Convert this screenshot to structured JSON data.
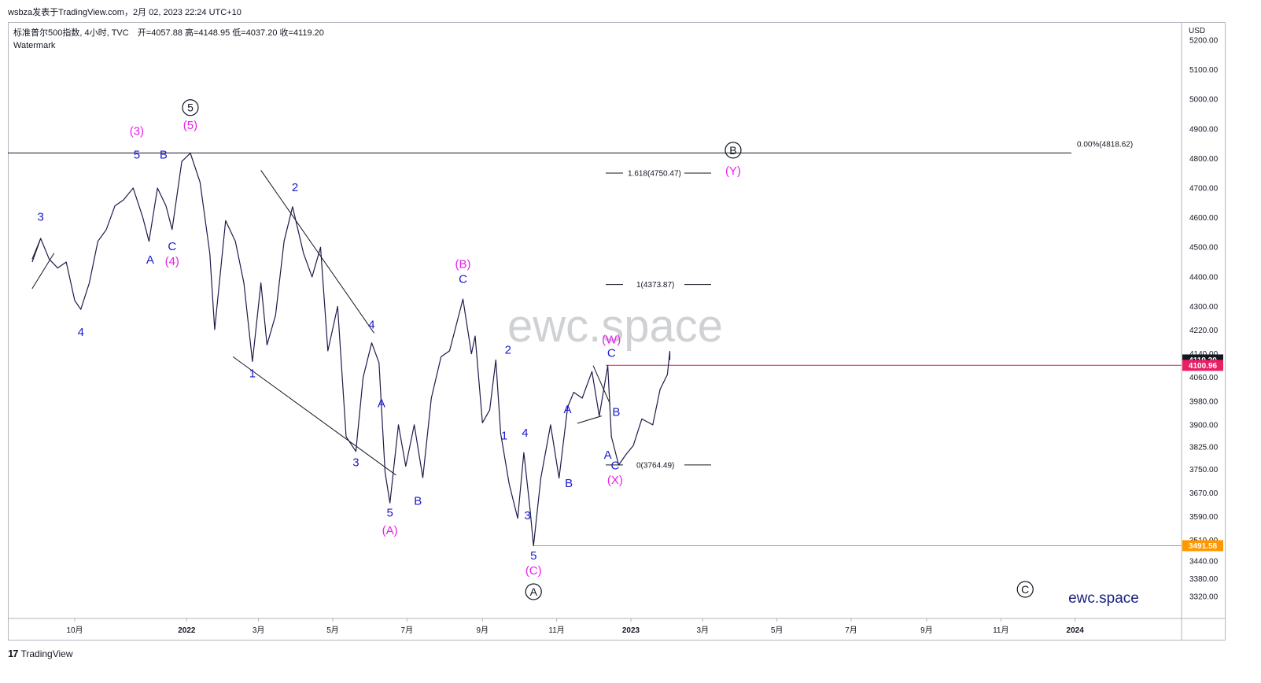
{
  "header": {
    "text": "wsbza发表于TradingView.com，2月 02, 2023 22:24 UTC+10"
  },
  "legend": {
    "symbol": "标准普尔500指数, 4小时, TVC",
    "open": "开=4057.88",
    "high": "高=4148.95",
    "low": "低=4037.20",
    "close": "收=4119.20",
    "watermark_label": "Watermark"
  },
  "currency": "USD",
  "watermark_text": "ewc.space",
  "brand_text": "ewc.space",
  "footer": {
    "logo": "17",
    "brand": "TradingView"
  },
  "colors": {
    "price_line": "#1e1b4b",
    "wave_blue": "#1a1acc",
    "wave_magenta": "#e91ee9",
    "black": "#131722",
    "current_price": "#e91e63",
    "low_line": "#ff9800"
  },
  "chart_data": {
    "type": "line",
    "instrument": "S&P 500 index, 4h",
    "x_ticks": [
      "10月",
      "2022",
      "3月",
      "5月",
      "7月",
      "9月",
      "11月",
      "2023",
      "3月",
      "5月",
      "7月",
      "9月",
      "11月",
      "2024"
    ],
    "y_ticks": [
      5200.0,
      5100.0,
      5000.0,
      4900.0,
      4800.0,
      4700.0,
      4600.0,
      4500.0,
      4400.0,
      4300.0,
      4220.0,
      4140.0,
      4060.0,
      3980.0,
      3900.0,
      3825.0,
      3750.0,
      3670.0,
      3590.0,
      3510.0,
      3440.0,
      3380.0,
      3320.0
    ],
    "y_tick_labels": [
      "5200.00",
      "5100.00",
      "5000.00",
      "4900.00",
      "4800.00",
      "4700.00",
      "4600.00",
      "4500.00",
      "4400.00",
      "4300.00",
      "4220.00",
      "4140.00",
      "4060.00",
      "3980.00",
      "3900.00",
      "3825.00",
      "3750.00",
      "3670.00",
      "3590.00",
      "3510.00",
      "3440.00",
      "3380.00",
      "3320.00"
    ],
    "price_path": [
      [
        "2021-08-27",
        4450
      ],
      [
        "2021-09-03",
        4530
      ],
      [
        "2021-09-10",
        4460
      ],
      [
        "2021-09-17",
        4430
      ],
      [
        "2021-09-24",
        4450
      ],
      [
        "2021-10-01",
        4320
      ],
      [
        "2021-10-06",
        4290
      ],
      [
        "2021-10-13",
        4380
      ],
      [
        "2021-10-20",
        4520
      ],
      [
        "2021-10-27",
        4560
      ],
      [
        "2021-11-03",
        4640
      ],
      [
        "2021-11-10",
        4660
      ],
      [
        "2021-11-18",
        4700
      ],
      [
        "2021-11-26",
        4600
      ],
      [
        "2021-12-01",
        4520
      ],
      [
        "2021-12-08",
        4700
      ],
      [
        "2021-12-15",
        4640
      ],
      [
        "2021-12-20",
        4560
      ],
      [
        "2021-12-28",
        4790
      ],
      [
        "2022-01-04",
        4818
      ],
      [
        "2022-01-12",
        4720
      ],
      [
        "2022-01-20",
        4480
      ],
      [
        "2022-01-24",
        4222
      ],
      [
        "2022-02-02",
        4590
      ],
      [
        "2022-02-10",
        4520
      ],
      [
        "2022-02-17",
        4380
      ],
      [
        "2022-02-24",
        4114
      ],
      [
        "2022-03-03",
        4380
      ],
      [
        "2022-03-08",
        4170
      ],
      [
        "2022-03-15",
        4270
      ],
      [
        "2022-03-22",
        4520
      ],
      [
        "2022-03-29",
        4637
      ],
      [
        "2022-04-07",
        4480
      ],
      [
        "2022-04-14",
        4400
      ],
      [
        "2022-04-21",
        4500
      ],
      [
        "2022-04-27",
        4150
      ],
      [
        "2022-05-05",
        4300
      ],
      [
        "2022-05-12",
        3860
      ],
      [
        "2022-05-20",
        3810
      ],
      [
        "2022-05-26",
        4060
      ],
      [
        "2022-06-02",
        4177
      ],
      [
        "2022-06-08",
        4110
      ],
      [
        "2022-06-13",
        3740
      ],
      [
        "2022-06-17",
        3636
      ],
      [
        "2022-06-24",
        3900
      ],
      [
        "2022-06-30",
        3760
      ],
      [
        "2022-07-07",
        3900
      ],
      [
        "2022-07-14",
        3721
      ],
      [
        "2022-07-21",
        3990
      ],
      [
        "2022-07-29",
        4130
      ],
      [
        "2022-08-05",
        4150
      ],
      [
        "2022-08-16",
        4325
      ],
      [
        "2022-08-23",
        4140
      ],
      [
        "2022-08-26",
        4200
      ],
      [
        "2022-09-01",
        3907
      ],
      [
        "2022-09-07",
        3950
      ],
      [
        "2022-09-12",
        4119
      ],
      [
        "2022-09-16",
        3870
      ],
      [
        "2022-09-23",
        3700
      ],
      [
        "2022-09-30",
        3584
      ],
      [
        "2022-10-05",
        3806
      ],
      [
        "2022-10-10",
        3620
      ],
      [
        "2022-10-13",
        3491
      ],
      [
        "2022-10-19",
        3720
      ],
      [
        "2022-10-27",
        3900
      ],
      [
        "2022-11-03",
        3720
      ],
      [
        "2022-11-10",
        3960
      ],
      [
        "2022-11-15",
        4010
      ],
      [
        "2022-11-22",
        3990
      ],
      [
        "2022-11-30",
        4080
      ],
      [
        "2022-12-06",
        3930
      ],
      [
        "2022-12-13",
        4100
      ],
      [
        "2022-12-16",
        3860
      ],
      [
        "2022-12-22",
        3764
      ],
      [
        "2022-12-28",
        3800
      ],
      [
        "2023-01-03",
        3830
      ],
      [
        "2023-01-10",
        3920
      ],
      [
        "2023-01-19",
        3900
      ],
      [
        "2023-01-25",
        4020
      ],
      [
        "2023-01-31",
        4070
      ],
      [
        "2023-02-02",
        4148
      ],
      [
        "2023-02-02",
        4119
      ]
    ],
    "current_price": {
      "value": 4119.2,
      "label": "4119.20"
    },
    "hline_price": {
      "value": 4100.96,
      "label": "4100.96"
    },
    "low_marker": {
      "value": 3491.58,
      "label": "3491.58"
    },
    "top_line": {
      "value": 4818.62,
      "label": "0.00%(4818.62)"
    },
    "fib_levels": [
      {
        "value": 4750.47,
        "label": "1.618(4750.47)"
      },
      {
        "value": 4373.87,
        "label": "1(4373.87)"
      },
      {
        "value": 3764.49,
        "label": "0(3764.49)"
      }
    ],
    "wave_labels": [
      {
        "text": "3",
        "date": "2021-09-03",
        "price": 4590,
        "color": "blue"
      },
      {
        "text": "4",
        "date": "2021-10-06",
        "price": 4200,
        "color": "blue"
      },
      {
        "text": "(3)",
        "date": "2021-11-21",
        "price": 4880,
        "color": "magenta"
      },
      {
        "text": "5",
        "date": "2021-11-21",
        "price": 4800,
        "color": "blue"
      },
      {
        "text": "A",
        "date": "2021-12-02",
        "price": 4445,
        "color": "blue"
      },
      {
        "text": "B",
        "date": "2021-12-13",
        "price": 4800,
        "color": "blue"
      },
      {
        "text": "C",
        "date": "2021-12-20",
        "price": 4490,
        "color": "blue"
      },
      {
        "text": "(4)",
        "date": "2021-12-20",
        "price": 4440,
        "color": "magenta"
      },
      {
        "text": "(5)",
        "date": "2022-01-04",
        "price": 4900,
        "color": "magenta"
      },
      {
        "text": "1",
        "date": "2022-02-24",
        "price": 4060,
        "color": "blue"
      },
      {
        "text": "2",
        "date": "2022-03-31",
        "price": 4690,
        "color": "blue"
      },
      {
        "text": "4",
        "date": "2022-06-02",
        "price": 4225,
        "color": "blue"
      },
      {
        "text": "3",
        "date": "2022-05-20",
        "price": 3760,
        "color": "blue"
      },
      {
        "text": "A",
        "date": "2022-06-10",
        "price": 3960,
        "color": "blue"
      },
      {
        "text": "5",
        "date": "2022-06-17",
        "price": 3590,
        "color": "blue"
      },
      {
        "text": "(A)",
        "date": "2022-06-17",
        "price": 3530,
        "color": "magenta"
      },
      {
        "text": "B",
        "date": "2022-07-10",
        "price": 3630,
        "color": "blue"
      },
      {
        "text": "(B)",
        "date": "2022-08-16",
        "price": 4430,
        "color": "magenta"
      },
      {
        "text": "C",
        "date": "2022-08-16",
        "price": 4380,
        "color": "blue"
      },
      {
        "text": "2",
        "date": "2022-09-22",
        "price": 4140,
        "color": "blue"
      },
      {
        "text": "1",
        "date": "2022-09-19",
        "price": 3850,
        "color": "blue"
      },
      {
        "text": "4",
        "date": "2022-10-06",
        "price": 3860,
        "color": "blue"
      },
      {
        "text": "3",
        "date": "2022-10-08",
        "price": 3580,
        "color": "blue"
      },
      {
        "text": "5",
        "date": "2022-10-13",
        "price": 3445,
        "color": "blue"
      },
      {
        "text": "(C)",
        "date": "2022-10-13",
        "price": 3395,
        "color": "magenta"
      },
      {
        "text": "A",
        "date": "2022-11-10",
        "price": 3940,
        "color": "blue"
      },
      {
        "text": "B",
        "date": "2022-11-11",
        "price": 3690,
        "color": "blue"
      },
      {
        "text": "(W)",
        "date": "2022-12-16",
        "price": 4175,
        "color": "magenta"
      },
      {
        "text": "C",
        "date": "2022-12-16",
        "price": 4130,
        "color": "blue"
      },
      {
        "text": "B",
        "date": "2022-12-20",
        "price": 3930,
        "color": "blue"
      },
      {
        "text": "A",
        "date": "2022-12-13",
        "price": 3785,
        "color": "blue"
      },
      {
        "text": "C",
        "date": "2022-12-19",
        "price": 3750,
        "color": "blue"
      },
      {
        "text": "(X)",
        "date": "2022-12-19",
        "price": 3700,
        "color": "magenta"
      },
      {
        "text": "(Y)",
        "date": "2023-03-26",
        "price": 4745,
        "color": "magenta"
      }
    ],
    "circled_labels": [
      {
        "text": "5",
        "date": "2022-01-04",
        "price": 4972
      },
      {
        "text": "B",
        "date": "2023-03-26",
        "price": 4828
      },
      {
        "text": "A",
        "date": "2022-10-13",
        "price": 3336
      },
      {
        "text": "C",
        "date": "2023-11-21",
        "price": 3344
      }
    ]
  }
}
